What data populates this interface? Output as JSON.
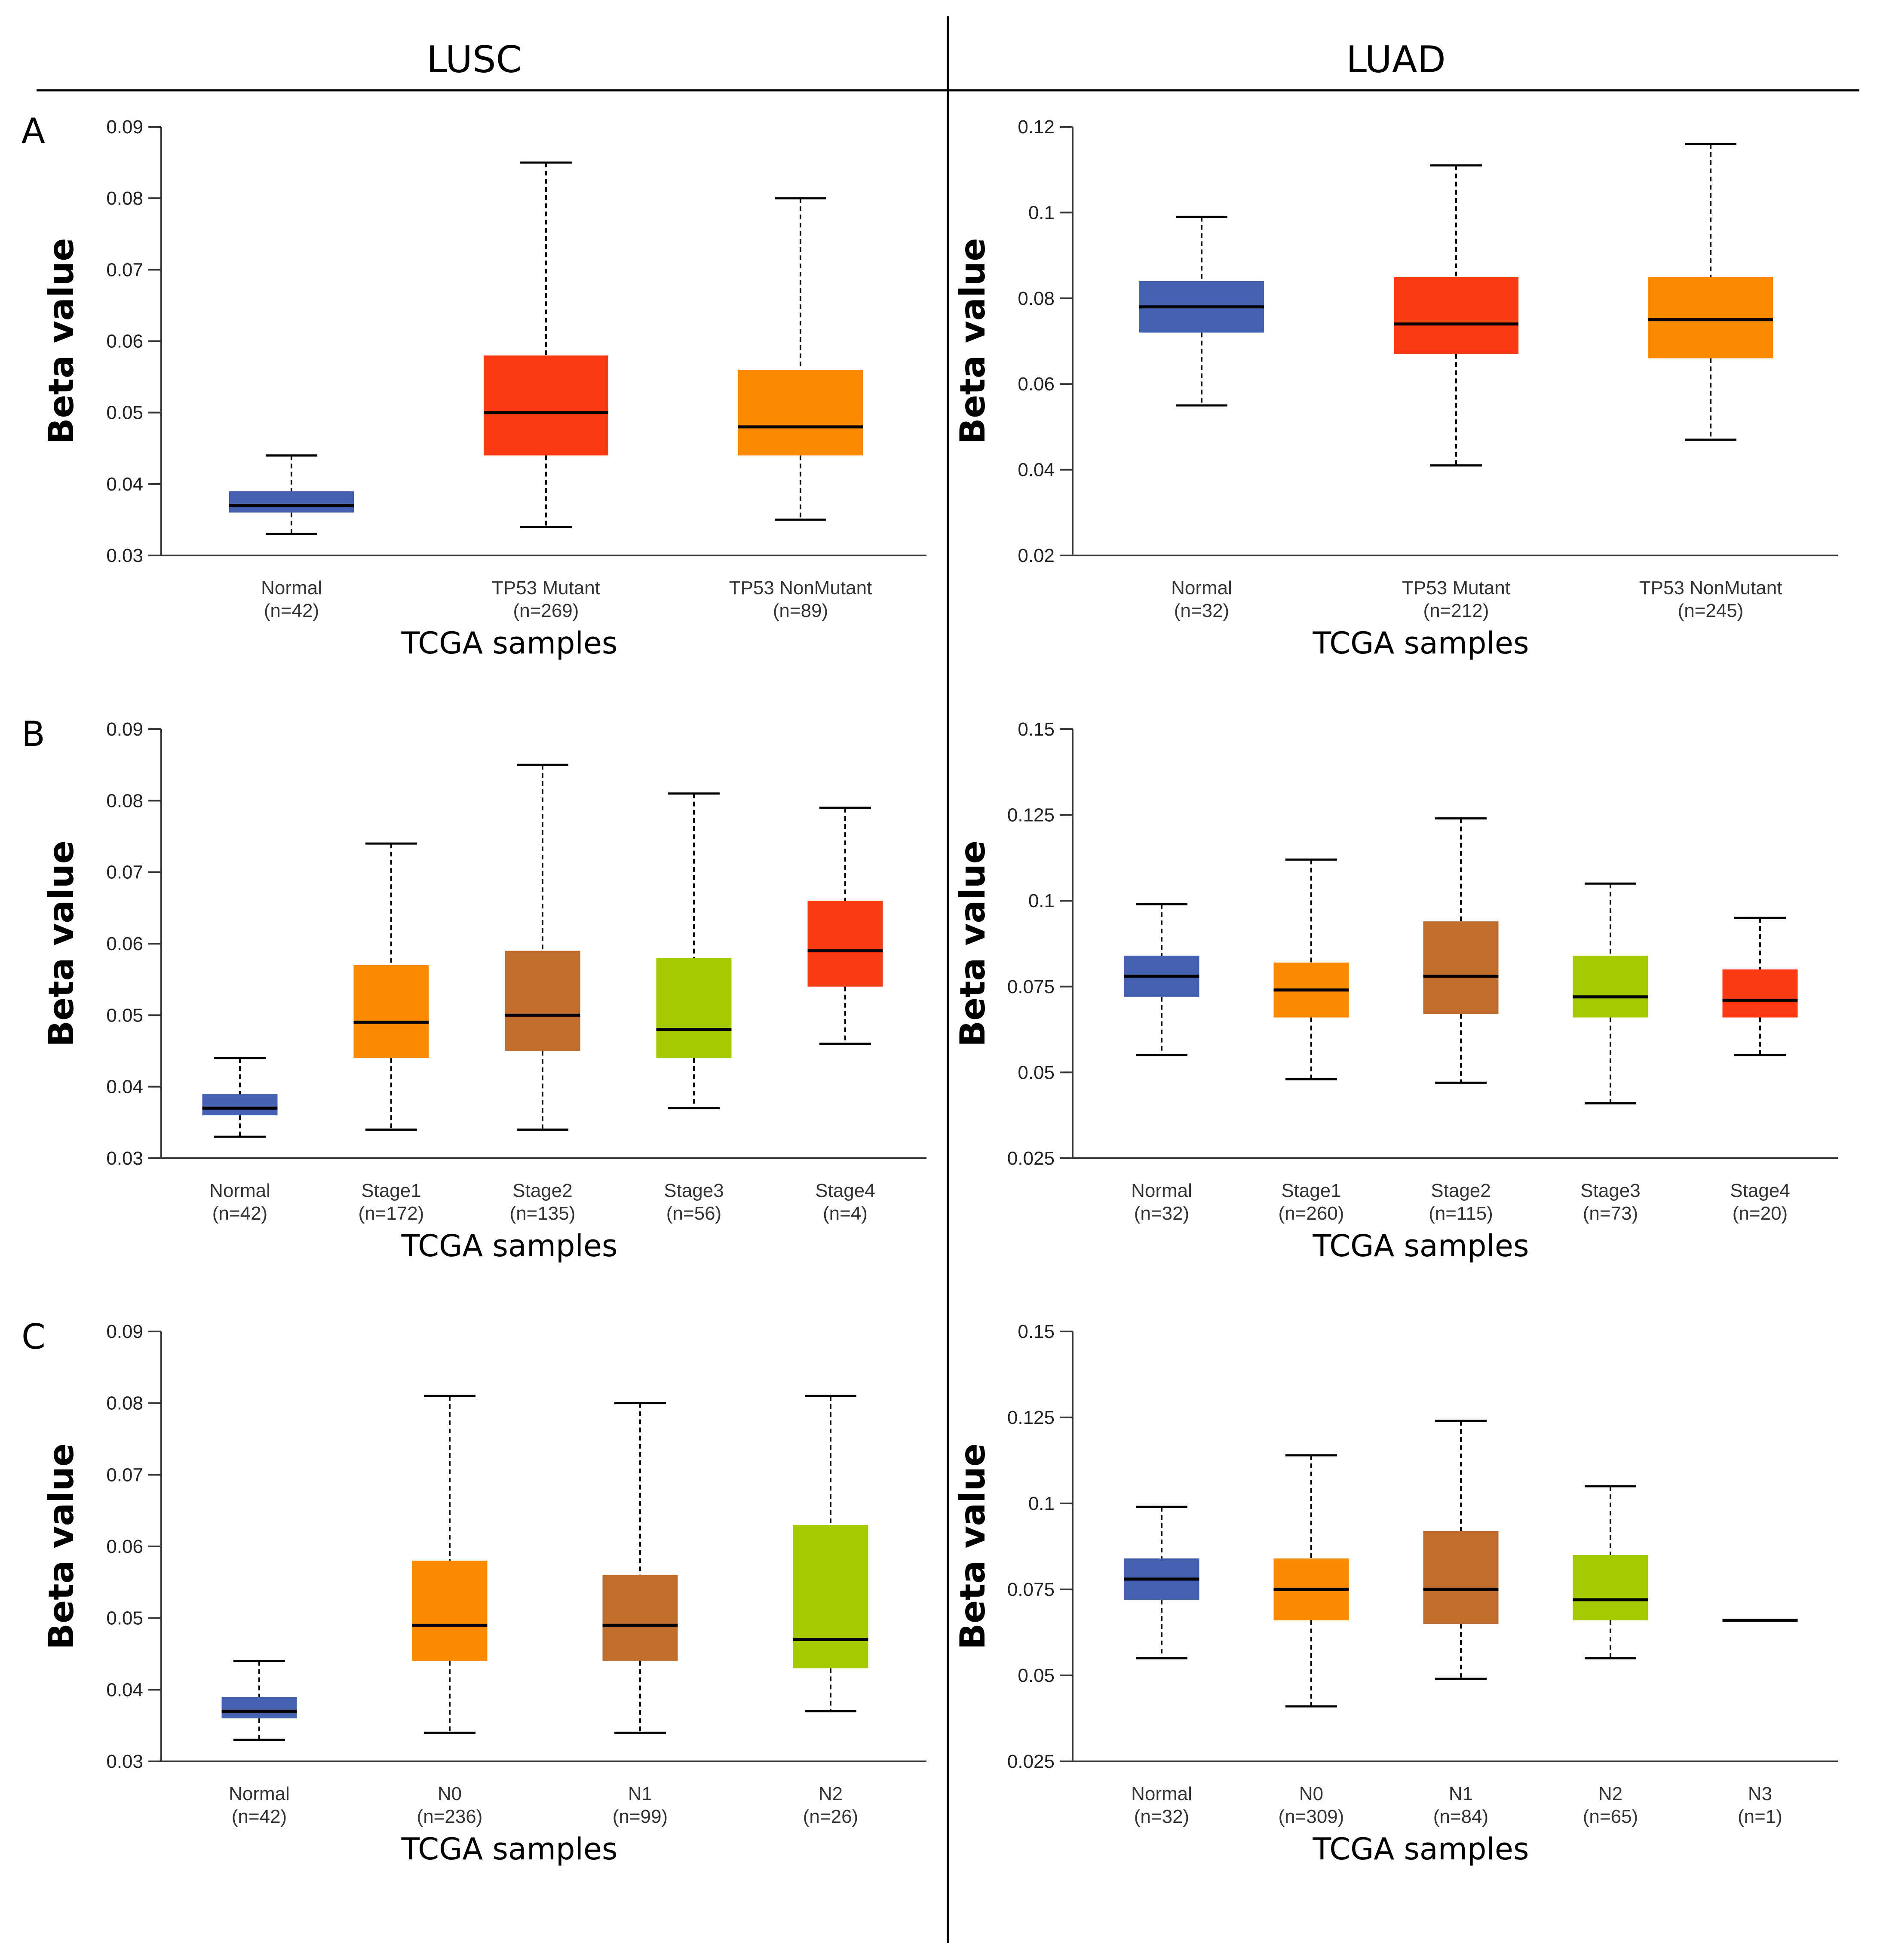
{
  "figure": {
    "columns": [
      "LUSC",
      "LUAD"
    ],
    "panel_letters": [
      "A",
      "B",
      "C"
    ]
  },
  "colors": {
    "blue": "#4462b0",
    "red": "#fa3a12",
    "orange": "#fc8a00",
    "brown": "#c26d2c",
    "green": "#a3cb00"
  },
  "chart_data": [
    {
      "id": "A-LUSC",
      "type": "box",
      "xlabel": "TCGA samples",
      "ylabel": "Beta value",
      "ylim": [
        0.03,
        0.09
      ],
      "yticks": [
        0.03,
        0.04,
        0.05,
        0.06,
        0.07,
        0.08,
        0.09
      ],
      "ytick_labels": [
        "0.03",
        "0.04",
        "0.05",
        "0.06",
        "0.07",
        "0.08",
        "0.09"
      ],
      "groups": [
        {
          "name": "Normal",
          "n": "(n=42)",
          "color": "#4462b0",
          "min": 0.033,
          "q1": 0.036,
          "median": 0.037,
          "q3": 0.039,
          "max": 0.044
        },
        {
          "name": "TP53 Mutant",
          "n": "(n=269)",
          "color": "#fa3a12",
          "min": 0.034,
          "q1": 0.044,
          "median": 0.05,
          "q3": 0.058,
          "max": 0.085
        },
        {
          "name": "TP53 NonMutant",
          "n": "(n=89)",
          "color": "#fc8a00",
          "min": 0.035,
          "q1": 0.044,
          "median": 0.048,
          "q3": 0.056,
          "max": 0.08
        }
      ]
    },
    {
      "id": "A-LUAD",
      "type": "box",
      "xlabel": "TCGA samples",
      "ylabel": "Beta value",
      "ylim": [
        0.02,
        0.12
      ],
      "yticks": [
        0.02,
        0.04,
        0.06,
        0.08,
        0.1,
        0.12
      ],
      "ytick_labels": [
        "0.02",
        "0.04",
        "0.06",
        "0.08",
        "0.1",
        "0.12"
      ],
      "groups": [
        {
          "name": "Normal",
          "n": "(n=32)",
          "color": "#4462b0",
          "min": 0.055,
          "q1": 0.072,
          "median": 0.078,
          "q3": 0.084,
          "max": 0.099
        },
        {
          "name": "TP53 Mutant",
          "n": "(n=212)",
          "color": "#fa3a12",
          "min": 0.041,
          "q1": 0.067,
          "median": 0.074,
          "q3": 0.085,
          "max": 0.111
        },
        {
          "name": "TP53 NonMutant",
          "n": "(n=245)",
          "color": "#fc8a00",
          "min": 0.047,
          "q1": 0.066,
          "median": 0.075,
          "q3": 0.085,
          "max": 0.116
        }
      ]
    },
    {
      "id": "B-LUSC",
      "type": "box",
      "xlabel": "TCGA samples",
      "ylabel": "Beta value",
      "ylim": [
        0.03,
        0.09
      ],
      "yticks": [
        0.03,
        0.04,
        0.05,
        0.06,
        0.07,
        0.08,
        0.09
      ],
      "ytick_labels": [
        "0.03",
        "0.04",
        "0.05",
        "0.06",
        "0.07",
        "0.08",
        "0.09"
      ],
      "groups": [
        {
          "name": "Normal",
          "n": "(n=42)",
          "color": "#4462b0",
          "min": 0.033,
          "q1": 0.036,
          "median": 0.037,
          "q3": 0.039,
          "max": 0.044
        },
        {
          "name": "Stage1",
          "n": "(n=172)",
          "color": "#fc8a00",
          "min": 0.034,
          "q1": 0.044,
          "median": 0.049,
          "q3": 0.057,
          "max": 0.074
        },
        {
          "name": "Stage2",
          "n": "(n=135)",
          "color": "#c26d2c",
          "min": 0.034,
          "q1": 0.045,
          "median": 0.05,
          "q3": 0.059,
          "max": 0.085
        },
        {
          "name": "Stage3",
          "n": "(n=56)",
          "color": "#a3cb00",
          "min": 0.037,
          "q1": 0.044,
          "median": 0.048,
          "q3": 0.058,
          "max": 0.081
        },
        {
          "name": "Stage4",
          "n": "(n=4)",
          "color": "#fa3a12",
          "min": 0.046,
          "q1": 0.054,
          "median": 0.059,
          "q3": 0.066,
          "max": 0.079
        }
      ]
    },
    {
      "id": "B-LUAD",
      "type": "box",
      "xlabel": "TCGA samples",
      "ylabel": "Beta value",
      "ylim": [
        0.025,
        0.15
      ],
      "yticks": [
        0.025,
        0.05,
        0.075,
        0.1,
        0.125,
        0.15
      ],
      "ytick_labels": [
        "0.025",
        "0.05",
        "0.075",
        "0.1",
        "0.125",
        "0.15"
      ],
      "groups": [
        {
          "name": "Normal",
          "n": "(n=32)",
          "color": "#4462b0",
          "min": 0.055,
          "q1": 0.072,
          "median": 0.078,
          "q3": 0.084,
          "max": 0.099
        },
        {
          "name": "Stage1",
          "n": "(n=260)",
          "color": "#fc8a00",
          "min": 0.048,
          "q1": 0.066,
          "median": 0.074,
          "q3": 0.082,
          "max": 0.112
        },
        {
          "name": "Stage2",
          "n": "(n=115)",
          "color": "#c26d2c",
          "min": 0.047,
          "q1": 0.067,
          "median": 0.078,
          "q3": 0.094,
          "max": 0.124
        },
        {
          "name": "Stage3",
          "n": "(n=73)",
          "color": "#a3cb00",
          "min": 0.041,
          "q1": 0.066,
          "median": 0.072,
          "q3": 0.084,
          "max": 0.105
        },
        {
          "name": "Stage4",
          "n": "(n=20)",
          "color": "#fa3a12",
          "min": 0.055,
          "q1": 0.066,
          "median": 0.071,
          "q3": 0.08,
          "max": 0.095
        }
      ]
    },
    {
      "id": "C-LUSC",
      "type": "box",
      "xlabel": "TCGA samples",
      "ylabel": "Beta value",
      "ylim": [
        0.03,
        0.09
      ],
      "yticks": [
        0.03,
        0.04,
        0.05,
        0.06,
        0.07,
        0.08,
        0.09
      ],
      "ytick_labels": [
        "0.03",
        "0.04",
        "0.05",
        "0.06",
        "0.07",
        "0.08",
        "0.09"
      ],
      "groups": [
        {
          "name": "Normal",
          "n": "(n=42)",
          "color": "#4462b0",
          "min": 0.033,
          "q1": 0.036,
          "median": 0.037,
          "q3": 0.039,
          "max": 0.044
        },
        {
          "name": "N0",
          "n": "(n=236)",
          "color": "#fc8a00",
          "min": 0.034,
          "q1": 0.044,
          "median": 0.049,
          "q3": 0.058,
          "max": 0.081
        },
        {
          "name": "N1",
          "n": "(n=99)",
          "color": "#c26d2c",
          "min": 0.034,
          "q1": 0.044,
          "median": 0.049,
          "q3": 0.056,
          "max": 0.08
        },
        {
          "name": "N2",
          "n": "(n=26)",
          "color": "#a3cb00",
          "min": 0.037,
          "q1": 0.043,
          "median": 0.047,
          "q3": 0.063,
          "max": 0.081
        }
      ]
    },
    {
      "id": "C-LUAD",
      "type": "box",
      "xlabel": "TCGA samples",
      "ylabel": "Beta value",
      "ylim": [
        0.025,
        0.15
      ],
      "yticks": [
        0.025,
        0.05,
        0.075,
        0.1,
        0.125,
        0.15
      ],
      "ytick_labels": [
        "0.025",
        "0.05",
        "0.075",
        "0.1",
        "0.125",
        "0.15"
      ],
      "groups": [
        {
          "name": "Normal",
          "n": "(n=32)",
          "color": "#4462b0",
          "min": 0.055,
          "q1": 0.072,
          "median": 0.078,
          "q3": 0.084,
          "max": 0.099
        },
        {
          "name": "N0",
          "n": "(n=309)",
          "color": "#fc8a00",
          "min": 0.041,
          "q1": 0.066,
          "median": 0.075,
          "q3": 0.084,
          "max": 0.114
        },
        {
          "name": "N1",
          "n": "(n=84)",
          "color": "#c26d2c",
          "min": 0.049,
          "q1": 0.065,
          "median": 0.075,
          "q3": 0.092,
          "max": 0.124
        },
        {
          "name": "N2",
          "n": "(n=65)",
          "color": "#a3cb00",
          "min": 0.055,
          "q1": 0.066,
          "median": 0.072,
          "q3": 0.085,
          "max": 0.105
        },
        {
          "name": "N3",
          "n": "(n=1)",
          "color": "#fa3a12",
          "min": 0.066,
          "q1": 0.066,
          "median": 0.066,
          "q3": 0.066,
          "max": 0.066
        }
      ]
    }
  ]
}
